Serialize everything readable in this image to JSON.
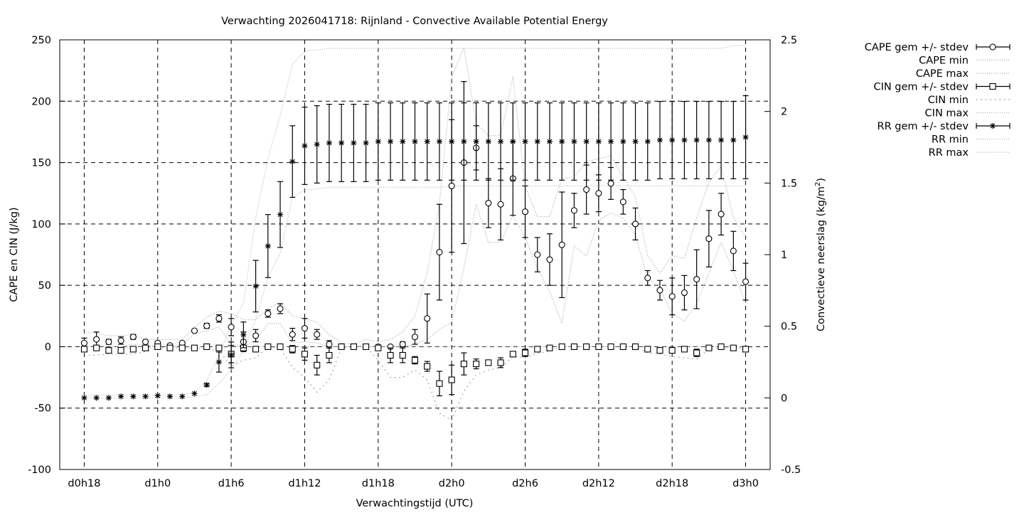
{
  "chart_data": {
    "type": "line",
    "title": "Verwachting 2026041718: Rijnland - Convective Available Potential Energy",
    "xlabel": "Verwachtingstijd (UTC)",
    "ylabel": "CAPE en CIN (J/kg)",
    "y2label": "Convectieve neerslag (kg/m",
    "y2label_sup": "2",
    "y2label_end": ")",
    "xlim": [
      16,
      74
    ],
    "ylim": [
      -100,
      250
    ],
    "y2lim": [
      -0.5,
      2.5
    ],
    "grid": true,
    "legend_position": "outside-top-right",
    "x_ticks": [
      {
        "v": 18,
        "label": "d0h18"
      },
      {
        "v": 24,
        "label": "d1h0"
      },
      {
        "v": 30,
        "label": "d1h6"
      },
      {
        "v": 36,
        "label": "d1h12"
      },
      {
        "v": 42,
        "label": "d1h18"
      },
      {
        "v": 48,
        "label": "d2h0"
      },
      {
        "v": 54,
        "label": "d2h6"
      },
      {
        "v": 60,
        "label": "d2h12"
      },
      {
        "v": 66,
        "label": "d2h18"
      },
      {
        "v": 72,
        "label": "d3h0"
      }
    ],
    "y_ticks": [
      "250",
      "200",
      "150",
      "100",
      "50",
      "0",
      "-50",
      "-100"
    ],
    "y2_ticks": [
      "2.5",
      "2",
      "1.5",
      "1",
      "0.5",
      "0",
      "-0.5"
    ],
    "x_hours_start": 18,
    "x_hours_end": 72,
    "series": [
      {
        "name": "CAPE gem +/- stdev",
        "axis": "y",
        "style": "errorbar",
        "marker": "circle",
        "mean": [
          3,
          6,
          4,
          5,
          8,
          4,
          3,
          1,
          3,
          13,
          17,
          23,
          16,
          4,
          9,
          27,
          31,
          10,
          15,
          10,
          2,
          0,
          0,
          0,
          0,
          0,
          2,
          8,
          23,
          77,
          131,
          150,
          162,
          117,
          116,
          137,
          110,
          75,
          71,
          83,
          111,
          128,
          125,
          133,
          118,
          100,
          56,
          46,
          41,
          44,
          55,
          88,
          108,
          78,
          53
        ],
        "stdev": [
          4,
          6,
          2,
          3,
          2,
          1,
          1,
          1,
          1,
          1,
          2,
          3,
          7,
          8,
          5,
          3,
          4,
          5,
          8,
          4,
          3,
          0,
          0,
          0,
          0,
          0,
          2,
          6,
          20,
          39,
          54,
          66,
          18,
          20,
          29,
          30,
          21,
          14,
          21,
          43,
          14,
          20,
          15,
          13,
          10,
          13,
          6,
          8,
          15,
          14,
          24,
          23,
          17,
          16,
          15
        ]
      },
      {
        "name": "CAPE min",
        "axis": "y",
        "style": "dotted",
        "color": "#a8a8a8",
        "values": [
          0,
          1,
          0,
          0,
          2,
          1,
          1,
          0,
          1,
          11,
          13,
          16,
          2,
          0,
          5,
          19,
          19,
          3,
          4,
          3,
          0,
          0,
          0,
          0,
          0,
          0,
          0,
          2,
          6,
          14,
          20,
          64,
          116,
          85,
          85,
          107,
          89,
          64,
          45,
          19,
          82,
          74,
          103,
          109,
          105,
          91,
          56,
          47,
          27,
          21,
          35,
          60,
          85,
          62,
          35
        ]
      },
      {
        "name": "CAPE max",
        "axis": "y",
        "style": "dotted",
        "color": "#a8a8a8",
        "values": [
          12,
          11,
          9,
          9,
          10,
          6,
          6,
          6,
          6,
          16,
          24,
          29,
          27,
          22,
          22,
          31,
          36,
          25,
          23,
          20,
          10,
          3,
          2,
          6,
          4,
          6,
          12,
          25,
          60,
          116,
          219,
          244,
          182,
          172,
          172,
          220,
          131,
          106,
          106,
          137,
          138,
          151,
          153,
          156,
          138,
          122,
          74,
          60,
          74,
          72,
          105,
          134,
          147,
          105,
          89
        ]
      },
      {
        "name": "CIN gem +/- stdev",
        "axis": "y",
        "style": "errorbar",
        "marker": "square",
        "mean": [
          -2,
          -1,
          -3,
          -3,
          -2,
          -1,
          0,
          -1,
          -1,
          -1,
          0,
          -1,
          -6,
          -1,
          -2,
          0,
          0,
          -2,
          -6,
          -15,
          -7,
          0,
          0,
          0,
          -1,
          -7,
          -7,
          -11,
          -16,
          -30,
          -27,
          -14,
          -14,
          -13,
          -13,
          -6,
          -5,
          -2,
          -1,
          0,
          0,
          0,
          0,
          0,
          0,
          0,
          -2,
          -3,
          -3,
          -2,
          -5,
          -1,
          0,
          -1,
          -2
        ],
        "stdev": [
          2,
          1,
          1,
          1,
          1,
          1,
          1,
          1,
          1,
          1,
          1,
          1,
          7,
          2,
          2,
          0,
          0,
          3,
          5,
          8,
          6,
          0,
          0,
          0,
          2,
          6,
          6,
          3,
          4,
          10,
          12,
          9,
          4,
          2,
          4,
          2,
          3,
          1,
          1,
          0,
          0,
          0,
          0,
          0,
          0,
          0,
          1,
          2,
          2,
          1,
          3,
          1,
          0,
          1,
          1
        ]
      },
      {
        "name": "CIN min",
        "axis": "y",
        "style": "dotted2",
        "color": "#8a8a8a",
        "values": [
          -7,
          -7,
          -6,
          -6,
          -6,
          -4,
          -1,
          -1,
          -1,
          -1,
          -2,
          -3,
          -16,
          -11,
          -9,
          0,
          -1,
          -17,
          -25,
          -37,
          -27,
          -1,
          0,
          0,
          -11,
          -25,
          -25,
          -19,
          -27,
          -54,
          -60,
          -36,
          -23,
          -19,
          -17,
          -8,
          -9,
          -5,
          -4,
          0,
          0,
          0,
          0,
          0,
          0,
          0,
          -5,
          -6,
          -8,
          -9,
          -10,
          -2,
          -1,
          -1,
          -1
        ]
      },
      {
        "name": "CIN max",
        "axis": "y",
        "style": "dotted",
        "color": "#b0b0b0",
        "values": [
          0,
          0,
          0,
          0,
          0,
          0,
          0,
          0,
          0,
          0,
          0,
          0,
          0,
          0,
          0,
          0,
          0,
          0,
          0,
          0,
          0,
          0,
          0,
          0,
          0,
          0,
          0,
          0,
          0,
          0,
          0,
          0,
          0,
          0,
          0,
          0,
          0,
          0,
          0,
          0,
          0,
          0,
          0,
          0,
          0,
          0,
          0,
          0,
          0,
          0,
          0,
          0,
          0,
          0,
          0
        ]
      },
      {
        "name": "RR gem +/- stdev",
        "axis": "y2",
        "style": "errorbar",
        "marker": "star",
        "mean": [
          0,
          0,
          0,
          0.01,
          0.01,
          0.01,
          0.015,
          0.01,
          0.01,
          0.03,
          0.09,
          0.25,
          0.3,
          0.44,
          0.78,
          1.06,
          1.28,
          1.65,
          1.76,
          1.77,
          1.78,
          1.78,
          1.78,
          1.78,
          1.79,
          1.79,
          1.79,
          1.79,
          1.79,
          1.79,
          1.79,
          1.79,
          1.79,
          1.79,
          1.79,
          1.79,
          1.79,
          1.79,
          1.79,
          1.79,
          1.79,
          1.79,
          1.79,
          1.79,
          1.79,
          1.79,
          1.79,
          1.8,
          1.8,
          1.8,
          1.8,
          1.8,
          1.8,
          1.8,
          1.82
        ],
        "stdev": [
          0,
          0,
          0,
          0,
          0,
          0,
          0,
          0,
          0,
          0,
          0.01,
          0.07,
          0.09,
          0.09,
          0.18,
          0.22,
          0.23,
          0.25,
          0.27,
          0.27,
          0.27,
          0.27,
          0.27,
          0.27,
          0.27,
          0.27,
          0.27,
          0.27,
          0.27,
          0.27,
          0.27,
          0.27,
          0.27,
          0.27,
          0.27,
          0.27,
          0.27,
          0.27,
          0.27,
          0.27,
          0.27,
          0.27,
          0.27,
          0.27,
          0.27,
          0.27,
          0.27,
          0.27,
          0.27,
          0.27,
          0.27,
          0.27,
          0.27,
          0.27,
          0.29
        ]
      },
      {
        "name": "RR min",
        "axis": "y2",
        "style": "dotted",
        "color": "#b4b4b4",
        "values": [
          0,
          0,
          0,
          0,
          0,
          0,
          0,
          0,
          0,
          0.01,
          0.02,
          0.1,
          0.2,
          0.33,
          0.55,
          0.84,
          1.01,
          1.4,
          1.45,
          1.46,
          1.47,
          1.47,
          1.47,
          1.47,
          1.47,
          1.47,
          1.47,
          1.47,
          1.47,
          1.47,
          1.48,
          1.48,
          1.48,
          1.48,
          1.48,
          1.48,
          1.48,
          1.48,
          1.48,
          1.48,
          1.48,
          1.48,
          1.48,
          1.48,
          1.48,
          1.48,
          1.48,
          1.48,
          1.48,
          1.48,
          1.48,
          1.48,
          1.48,
          1.48,
          1.48
        ]
      },
      {
        "name": "RR max",
        "axis": "y2",
        "style": "dotted",
        "color": "#b4b4b4",
        "values": [
          0.02,
          0.02,
          0.02,
          0.02,
          0.02,
          0.02,
          0.02,
          0.02,
          0.02,
          0.04,
          0.12,
          0.3,
          0.51,
          0.66,
          1.26,
          1.67,
          1.97,
          2.33,
          2.42,
          2.43,
          2.44,
          2.44,
          2.44,
          2.44,
          2.44,
          2.44,
          2.44,
          2.44,
          2.44,
          2.44,
          2.44,
          2.44,
          2.44,
          2.44,
          2.44,
          2.44,
          2.44,
          2.44,
          2.44,
          2.44,
          2.44,
          2.44,
          2.44,
          2.44,
          2.44,
          2.44,
          2.44,
          2.44,
          2.44,
          2.44,
          2.44,
          2.44,
          2.44,
          2.46,
          2.46
        ]
      }
    ]
  }
}
